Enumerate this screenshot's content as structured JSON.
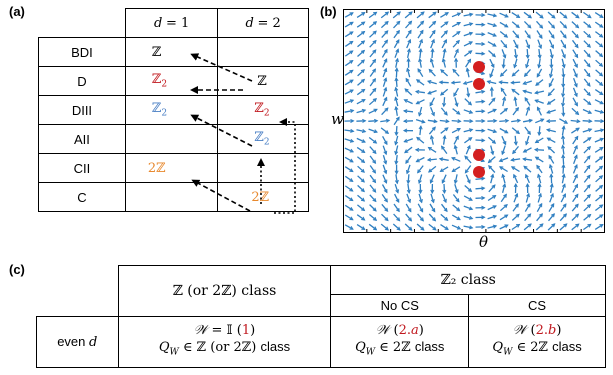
{
  "panel_a": {
    "label": "(a)",
    "headers": [
      "",
      "d = 1",
      "d = 2"
    ],
    "rows": [
      {
        "name": "BDI",
        "d1": "ℤ",
        "d1_color": "#000000",
        "d2": "",
        "d2_color": "#000000"
      },
      {
        "name": "D",
        "d1": "ℤ₂",
        "d1_color": "#c0181e",
        "d2": "ℤ",
        "d2_color": "#000000"
      },
      {
        "name": "DIII",
        "d1": "ℤ₂",
        "d1_color": "#4a7fc4",
        "d2": "ℤ₂",
        "d2_color": "#c0181e"
      },
      {
        "name": "AII",
        "d1": "",
        "d1_color": "#000000",
        "d2": "ℤ₂",
        "d2_color": "#4a7fc4"
      },
      {
        "name": "CII",
        "d1": "2ℤ",
        "d1_color": "#e8892e",
        "d2": "",
        "d2_color": "#000000"
      },
      {
        "name": "C",
        "d1": "",
        "d1_color": "#000000",
        "d2": "2ℤ",
        "d2_color": "#e8892e"
      }
    ]
  },
  "panel_b": {
    "label": "(b)",
    "xlabel": "θ",
    "ylabel": "w",
    "arrow_color": "#2f7fc1",
    "dot_color": "#d41f1f"
  },
  "panel_c": {
    "label": "(c)",
    "col1_header": "ℤ (or 2ℤ) class",
    "z2_header": "ℤ₂ class",
    "no_cs": "No CS",
    "cs": "CS",
    "row_label": "even d",
    "cell1_top": "𝒲 = 𝕀 (1)",
    "cell1_bottom": "Q_W ∈ ℤ (or 2ℤ) class",
    "cell2_top": "𝒲 (2.a)",
    "cell2_bottom": "Q_W ∈ 2ℤ class",
    "cell3_top": "𝒲 (2.b)",
    "cell3_bottom": "Q_W ∈ 2ℤ class"
  }
}
